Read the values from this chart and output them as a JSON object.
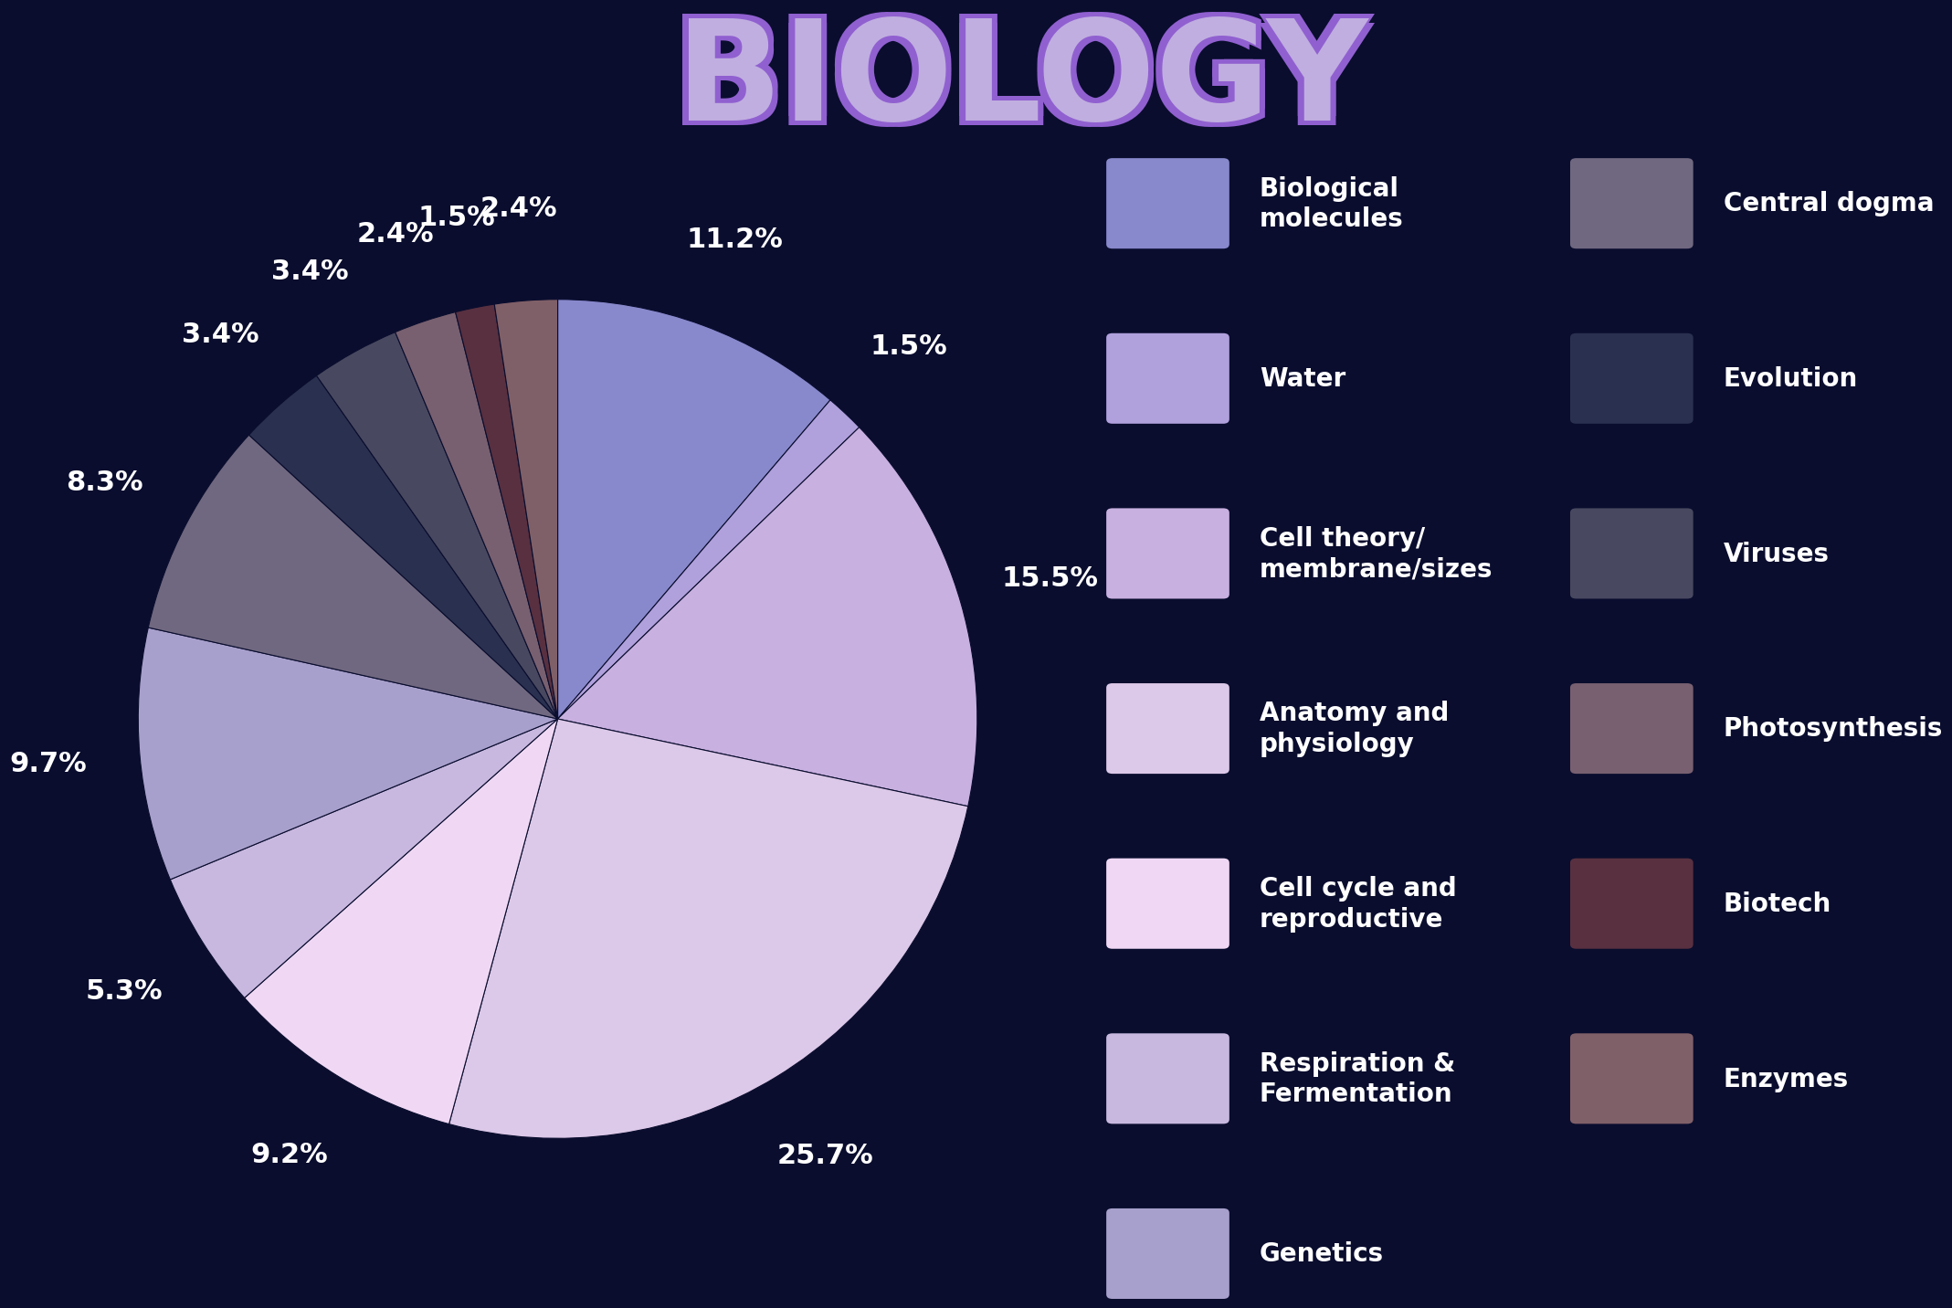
{
  "title": "BIOLOGY",
  "background_color": "#0a0d2e",
  "title_color": "#c0aee0",
  "title_outline_color": "#9060d0",
  "slices": [
    {
      "label": "Biological molecules",
      "pct": 11.2,
      "color": "#8888cc"
    },
    {
      "label": "Water",
      "pct": 1.5,
      "color": "#b0a0dc"
    },
    {
      "label": "Cell theory/membrane/sizes",
      "pct": 15.5,
      "color": "#c8b0e0"
    },
    {
      "label": "Anatomy and physiology",
      "pct": 25.7,
      "color": "#dcc8e8"
    },
    {
      "label": "Cell cycle and reproductive",
      "pct": 9.2,
      "color": "#f0d8f4"
    },
    {
      "label": "Respiration & Fermentation",
      "pct": 5.3,
      "color": "#c8b8e0"
    },
    {
      "label": "Genetics",
      "pct": 9.7,
      "color": "#a8a0cc"
    },
    {
      "label": "Central dogma",
      "pct": 8.3,
      "color": "#706880"
    },
    {
      "label": "Evolution",
      "pct": 3.4,
      "color": "#2a3050"
    },
    {
      "label": "Viruses",
      "pct": 3.4,
      "color": "#484860"
    },
    {
      "label": "Photosynthesis",
      "pct": 2.4,
      "color": "#786070"
    },
    {
      "label": "Biotech",
      "pct": 1.5,
      "color": "#583040"
    },
    {
      "label": "Enzymes",
      "pct": 2.4,
      "color": "#806068"
    }
  ],
  "pct_labels": [
    "11.2%",
    "1.5%",
    "15.5%",
    "25.7%",
    "9.2%",
    "5.3%",
    "9.7%",
    "8.3%",
    "3.4%",
    "3.4%",
    "2.4%",
    "1.5%",
    "2.4%"
  ],
  "legend_left": [
    {
      "label": "Biological\nmolecules",
      "color": "#8888cc"
    },
    {
      "label": "Water",
      "color": "#b0a0dc"
    },
    {
      "label": "Cell theory/\nmembrane/sizes",
      "color": "#c8b0e0"
    },
    {
      "label": "Anatomy and\nphysiology",
      "color": "#dcc8e8"
    },
    {
      "label": "Cell cycle and\nreproductive",
      "color": "#f0d8f4"
    },
    {
      "label": "Respiration &\nFermentation",
      "color": "#c8b8e0"
    },
    {
      "label": "Genetics",
      "color": "#a8a0cc"
    }
  ],
  "legend_right": [
    {
      "label": "Central dogma",
      "color": "#706880"
    },
    {
      "label": "Evolution",
      "color": "#2a3050"
    },
    {
      "label": "Viruses",
      "color": "#484860"
    },
    {
      "label": "Photosynthesis",
      "color": "#786070"
    },
    {
      "label": "Biotech",
      "color": "#583040"
    },
    {
      "label": "Enzymes",
      "color": "#806068"
    }
  ],
  "text_color": "#ffffff",
  "pct_fontsize": 22,
  "legend_fontsize": 20,
  "title_fontsize": 110
}
